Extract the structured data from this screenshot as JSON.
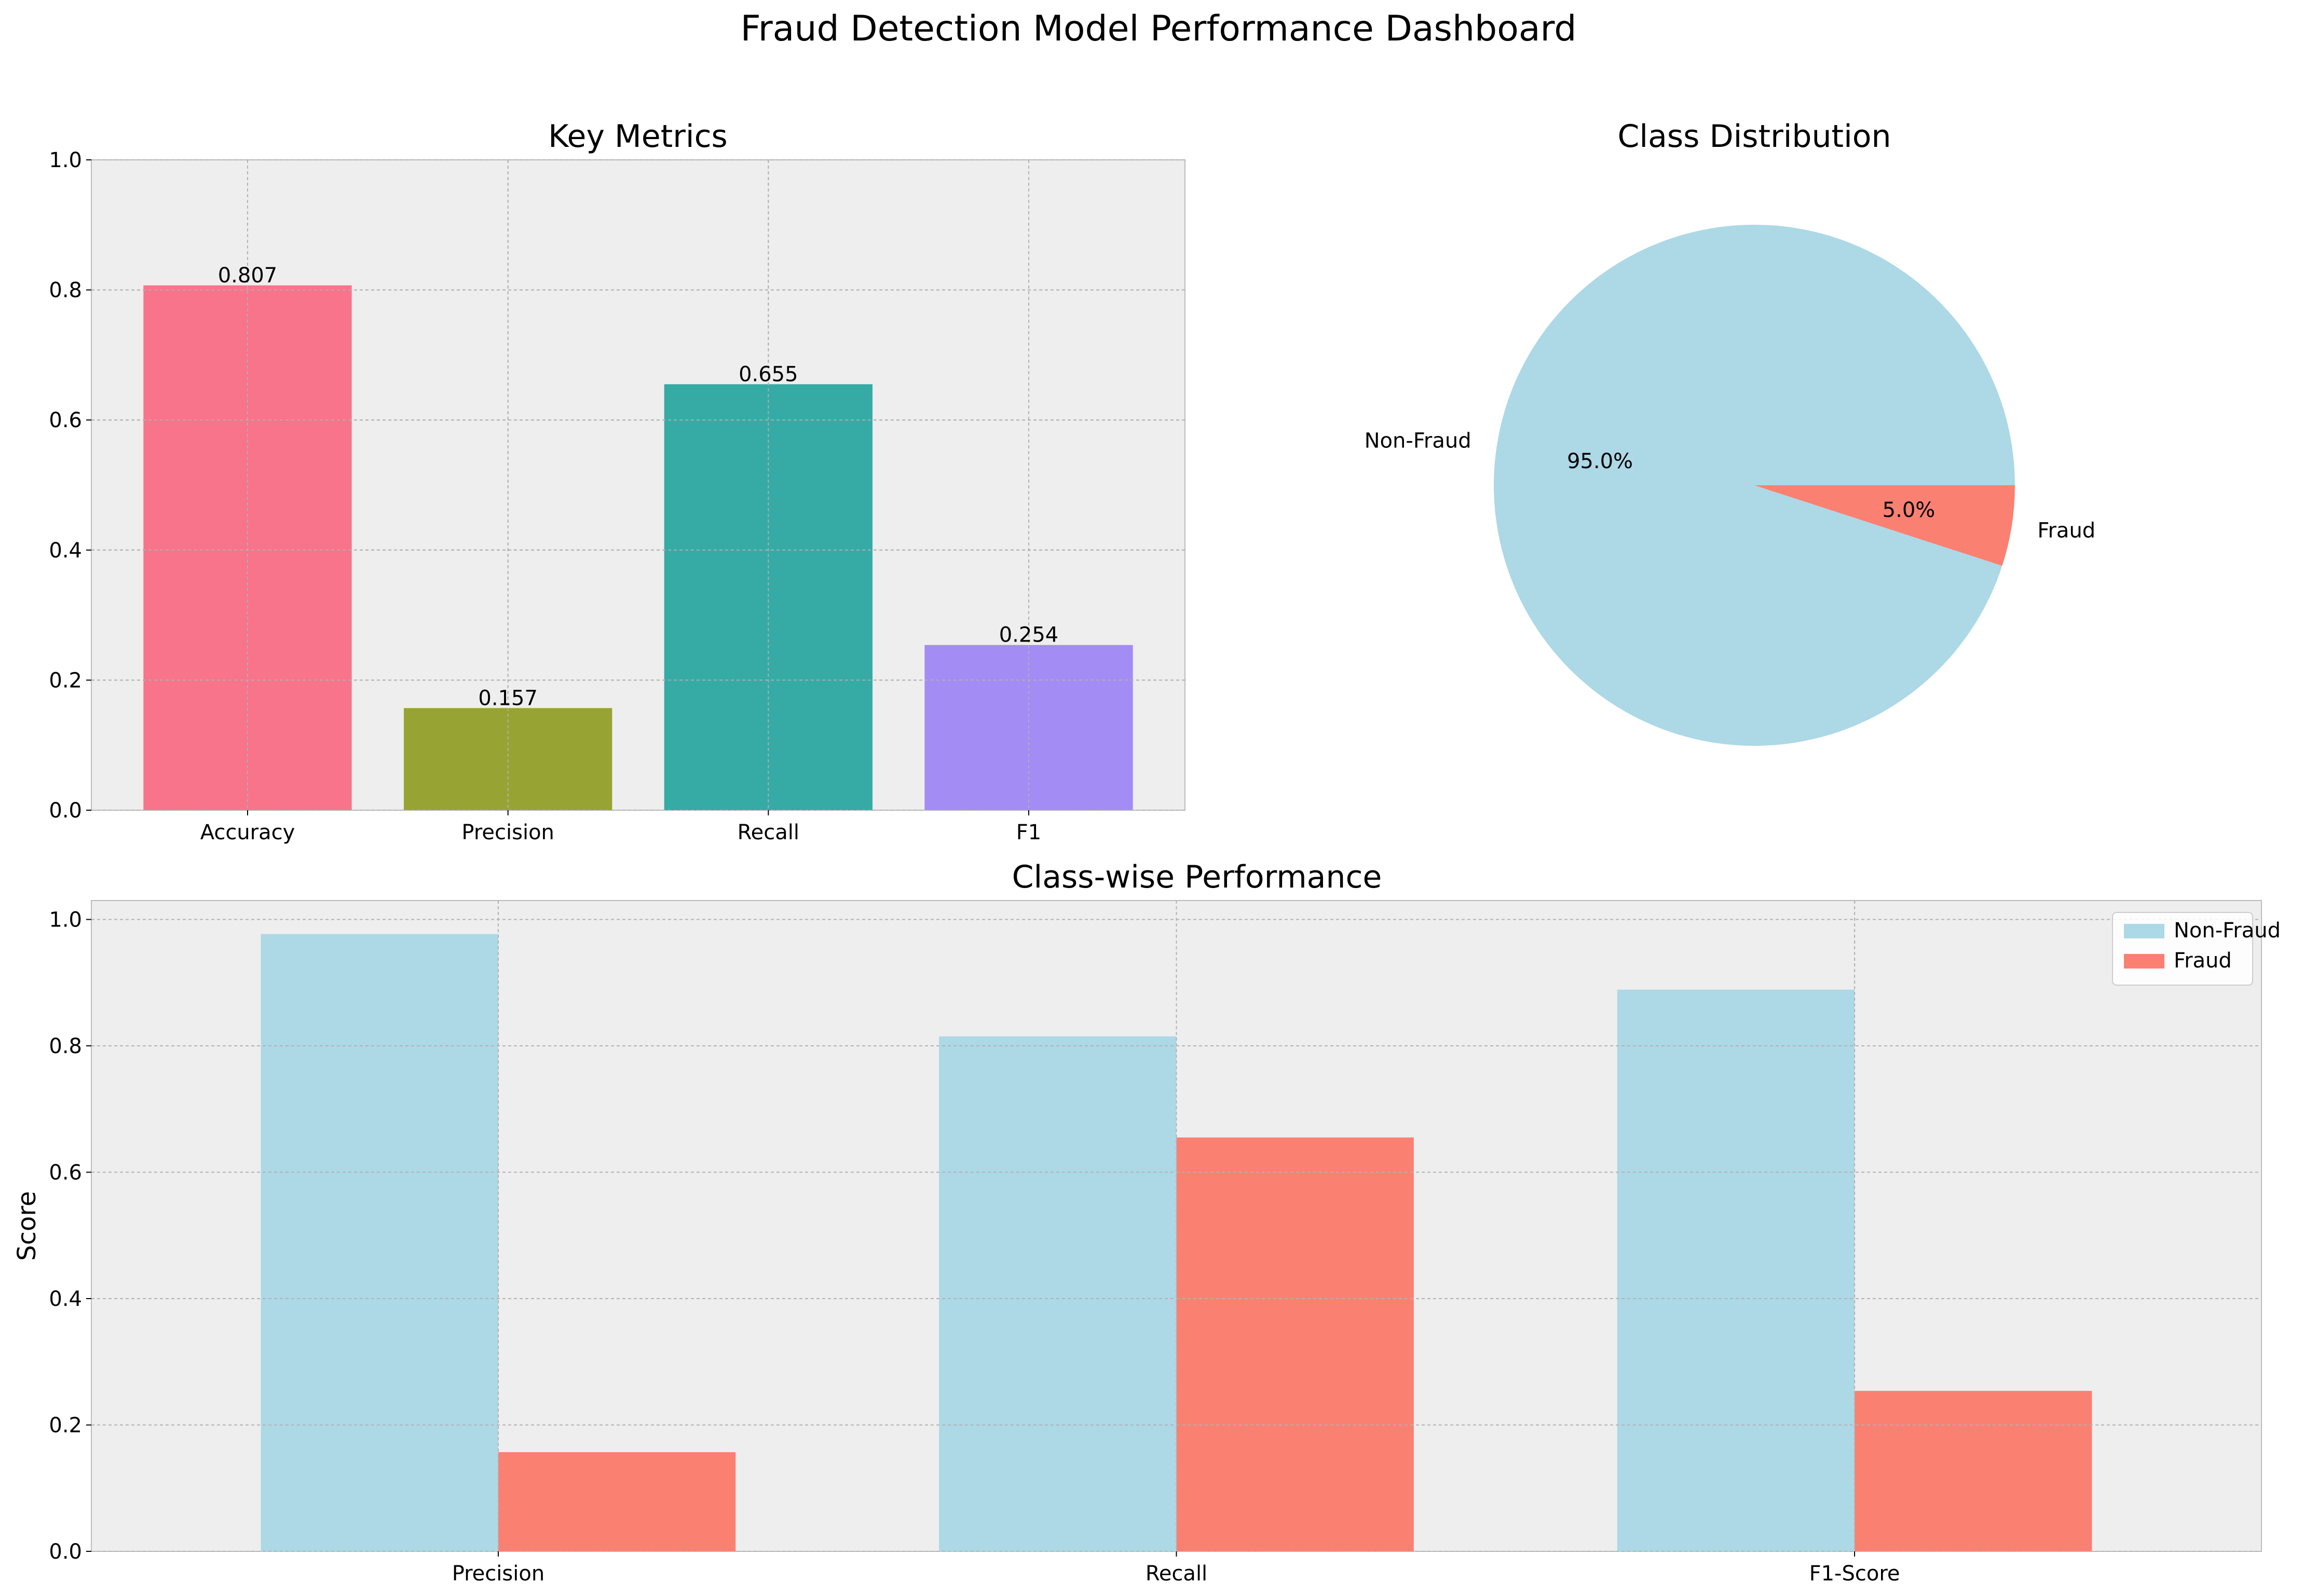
{
  "suptitle": "Fraud Detection Model Performance Dashboard",
  "chart_data": [
    {
      "type": "bar",
      "title": "Key Metrics",
      "categories": [
        "Accuracy",
        "Precision",
        "Recall",
        "F1"
      ],
      "values": [
        0.807,
        0.157,
        0.655,
        0.254
      ],
      "value_labels": [
        "0.807",
        "0.157",
        "0.655",
        "0.254"
      ],
      "colors": [
        "#f7748b",
        "#97a434",
        "#36aba5",
        "#a38cf4"
      ],
      "ylim": [
        0,
        1.0
      ],
      "yticks": [
        "0.0",
        "0.2",
        "0.4",
        "0.6",
        "0.8",
        "1.0"
      ],
      "xlabel": "",
      "ylabel": "",
      "grid": true
    },
    {
      "type": "pie",
      "title": "Class Distribution",
      "labels": [
        "Non-Fraud",
        "Fraud"
      ],
      "values": [
        95.0,
        5.0
      ],
      "pct_labels": [
        "95.0%",
        "5.0%"
      ],
      "colors": [
        "#add8e6",
        "#fa8072"
      ]
    },
    {
      "type": "bar",
      "title": "Class-wise Performance",
      "categories": [
        "Precision",
        "Recall",
        "F1-Score"
      ],
      "series": [
        {
          "name": "Non-Fraud",
          "values": [
            0.977,
            0.815,
            0.889
          ],
          "color": "#add8e6"
        },
        {
          "name": "Fraud",
          "values": [
            0.157,
            0.655,
            0.254
          ],
          "color": "#fa8072"
        }
      ],
      "ylim": [
        0,
        1.03
      ],
      "yticks": [
        "0.0",
        "0.2",
        "0.4",
        "0.6",
        "0.8",
        "1.0"
      ],
      "xlabel": "",
      "ylabel": "Score",
      "legend": "top-right",
      "grid": true
    }
  ]
}
